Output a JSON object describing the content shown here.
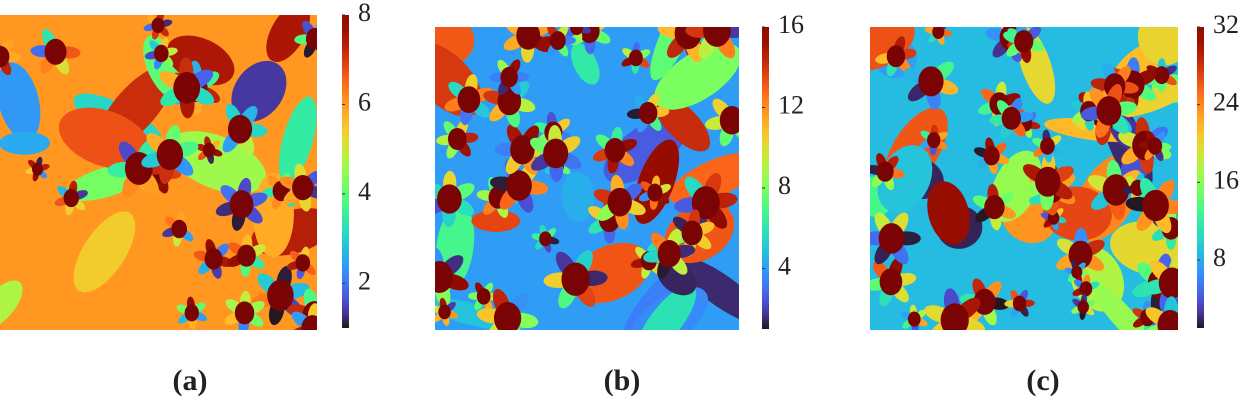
{
  "chart_data": [
    {
      "type": "heatmap",
      "label": "(a)",
      "ylim": [
        1,
        8
      ],
      "yticks": [
        2,
        4,
        6,
        8
      ]
    },
    {
      "type": "heatmap",
      "label": "(b)",
      "ylim": [
        1,
        16
      ],
      "yticks": [
        4,
        8,
        12,
        16
      ]
    },
    {
      "type": "heatmap",
      "label": "(c)",
      "ylim": [
        1,
        32
      ],
      "yticks": [
        8,
        16,
        24,
        32
      ]
    }
  ]
}
